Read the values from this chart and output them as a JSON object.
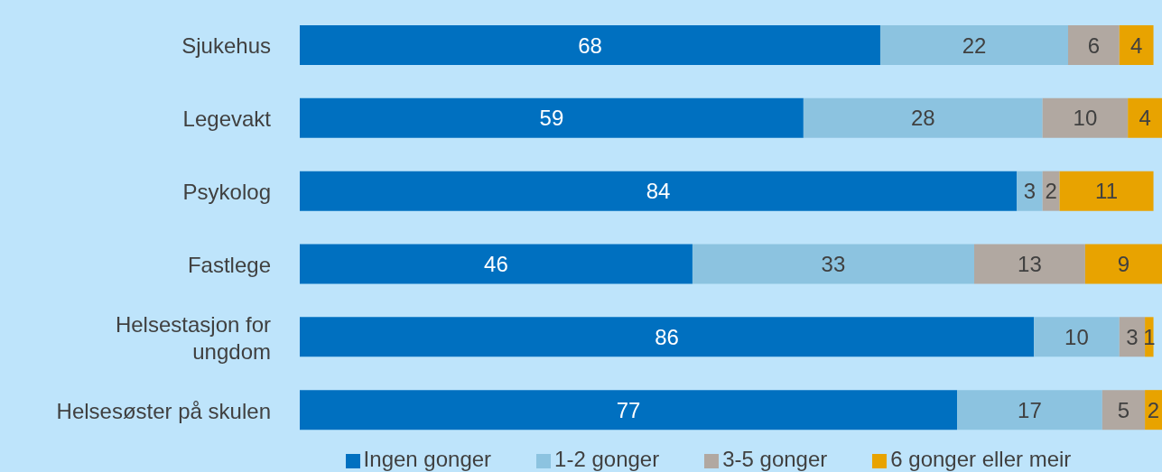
{
  "chart_data": {
    "type": "bar",
    "orientation": "horizontal",
    "stacked": true,
    "data_labels": true,
    "legend": "bottom",
    "tick_labels": "y",
    "categories": [
      "Sjukehus",
      "Legevakt",
      "Psykolog",
      "Fastlege",
      "Helsestasjon for ungdom",
      "Helsesøster på skulen"
    ],
    "series": [
      {
        "name": "Ingen gonger",
        "color": "#0070c0",
        "values": [
          68,
          59,
          84,
          46,
          86,
          77
        ]
      },
      {
        "name": "1-2 gonger",
        "color": "#8cc3e0",
        "values": [
          22,
          28,
          3,
          33,
          10,
          17
        ]
      },
      {
        "name": "3-5 gonger",
        "color": "#b1a8a1",
        "values": [
          6,
          10,
          2,
          13,
          3,
          5
        ]
      },
      {
        "name": "6 gonger eller meir",
        "color": "#e8a300",
        "values": [
          4,
          4,
          11,
          9,
          1,
          2
        ]
      }
    ]
  }
}
